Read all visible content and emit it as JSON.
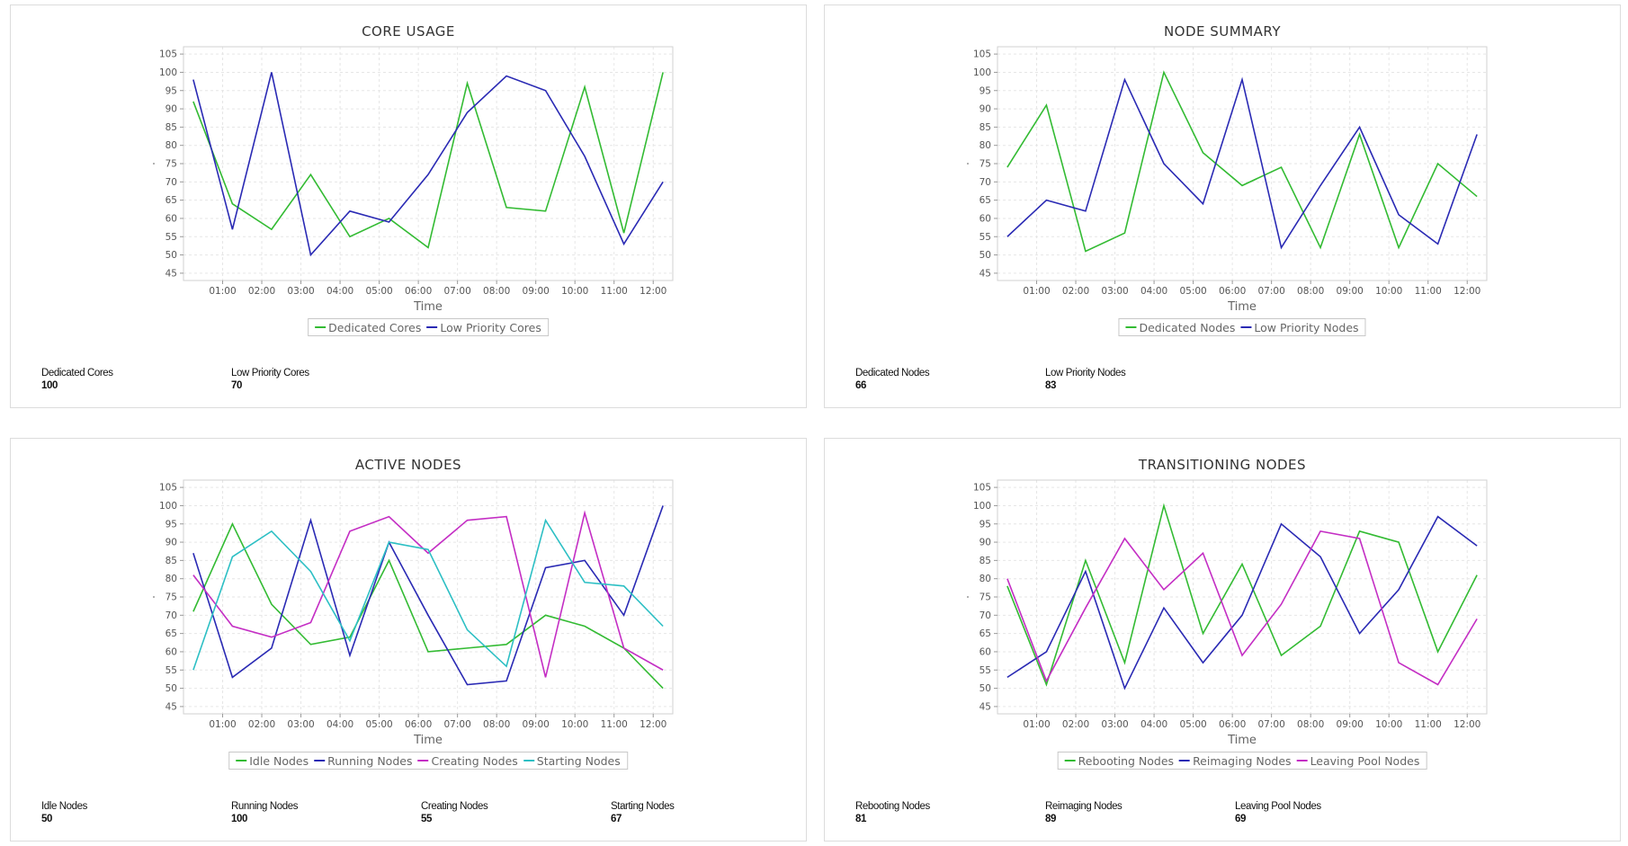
{
  "colors": {
    "green": "#33bb33",
    "blue": "#2a2ab4",
    "magenta": "#c42ec4",
    "cyan": "#2cbfc4"
  },
  "chart_data": [
    {
      "type": "line",
      "title": "CORE USAGE",
      "xlabel": "Time",
      "ylabel": "",
      "categories": [
        "01:00",
        "02:00",
        "03:00",
        "04:00",
        "05:00",
        "06:00",
        "07:00",
        "08:00",
        "09:00",
        "10:00",
        "11:00",
        "12:00"
      ],
      "x": [
        0.25,
        1.25,
        2.25,
        3.25,
        4.25,
        5.25,
        6.25,
        7.25,
        8.25,
        9.25,
        10.25,
        11.25,
        12.25
      ],
      "ylim": [
        43,
        107
      ],
      "yticks": [
        45,
        50,
        55,
        60,
        65,
        70,
        75,
        80,
        85,
        90,
        95,
        100,
        105
      ],
      "grid": true,
      "legend_position": "bottom-center",
      "series": [
        {
          "name": "Dedicated Cores",
          "color": "green",
          "values": [
            92,
            64,
            57,
            72,
            55,
            60,
            52,
            97,
            63,
            62,
            96,
            56,
            100
          ]
        },
        {
          "name": "Low Priority Cores",
          "color": "blue",
          "values": [
            98,
            57,
            100,
            50,
            62,
            59,
            72,
            89,
            99,
            95,
            77,
            53,
            70
          ]
        }
      ],
      "stats": [
        {
          "label": "Dedicated Cores",
          "value": "100"
        },
        {
          "label": "Low Priority Cores",
          "value": "70"
        }
      ]
    },
    {
      "type": "line",
      "title": "NODE SUMMARY",
      "xlabel": "Time",
      "ylabel": "",
      "categories": [
        "01:00",
        "02:00",
        "03:00",
        "04:00",
        "05:00",
        "06:00",
        "07:00",
        "08:00",
        "09:00",
        "10:00",
        "11:00",
        "12:00"
      ],
      "x": [
        0.25,
        1.25,
        2.25,
        3.25,
        4.25,
        5.25,
        6.25,
        7.25,
        8.25,
        9.25,
        10.25,
        11.25,
        12.25
      ],
      "ylim": [
        43,
        107
      ],
      "yticks": [
        45,
        50,
        55,
        60,
        65,
        70,
        75,
        80,
        85,
        90,
        95,
        100,
        105
      ],
      "grid": true,
      "legend_position": "bottom-center",
      "series": [
        {
          "name": "Dedicated Nodes",
          "color": "green",
          "values": [
            74,
            91,
            51,
            56,
            100,
            78,
            69,
            74,
            52,
            83,
            52,
            75,
            66
          ]
        },
        {
          "name": "Low Priority Nodes",
          "color": "blue",
          "values": [
            55,
            65,
            62,
            98,
            75,
            64,
            98,
            52,
            69,
            85,
            61,
            53,
            83
          ]
        }
      ],
      "stats": [
        {
          "label": "Dedicated Nodes",
          "value": "66"
        },
        {
          "label": "Low Priority Nodes",
          "value": "83"
        }
      ]
    },
    {
      "type": "line",
      "title": "ACTIVE NODES",
      "xlabel": "Time",
      "ylabel": "",
      "categories": [
        "01:00",
        "02:00",
        "03:00",
        "04:00",
        "05:00",
        "06:00",
        "07:00",
        "08:00",
        "09:00",
        "10:00",
        "11:00",
        "12:00"
      ],
      "x": [
        0.25,
        1.25,
        2.25,
        3.25,
        4.25,
        5.25,
        6.25,
        7.25,
        8.25,
        9.25,
        10.25,
        11.25,
        12.25
      ],
      "ylim": [
        43,
        107
      ],
      "yticks": [
        45,
        50,
        55,
        60,
        65,
        70,
        75,
        80,
        85,
        90,
        95,
        100,
        105
      ],
      "grid": true,
      "legend_position": "bottom-center",
      "series": [
        {
          "name": "Idle Nodes",
          "color": "green",
          "values": [
            71,
            95,
            73,
            62,
            64,
            85,
            60,
            61,
            62,
            70,
            67,
            61,
            50
          ]
        },
        {
          "name": "Running Nodes",
          "color": "blue",
          "values": [
            87,
            53,
            61,
            96,
            59,
            90,
            70,
            51,
            52,
            83,
            85,
            70,
            100
          ]
        },
        {
          "name": "Creating Nodes",
          "color": "magenta",
          "values": [
            81,
            67,
            64,
            68,
            93,
            97,
            87,
            96,
            97,
            53,
            98,
            61,
            55
          ]
        },
        {
          "name": "Starting Nodes",
          "color": "cyan",
          "values": [
            55,
            86,
            93,
            82,
            63,
            90,
            88,
            66,
            56,
            96,
            79,
            78,
            67
          ]
        }
      ],
      "stats": [
        {
          "label": "Idle Nodes",
          "value": "50"
        },
        {
          "label": "Running Nodes",
          "value": "100"
        },
        {
          "label": "Creating Nodes",
          "value": "55"
        },
        {
          "label": "Starting Nodes",
          "value": "67"
        }
      ]
    },
    {
      "type": "line",
      "title": "TRANSITIONING NODES",
      "xlabel": "Time",
      "ylabel": "",
      "categories": [
        "01:00",
        "02:00",
        "03:00",
        "04:00",
        "05:00",
        "06:00",
        "07:00",
        "08:00",
        "09:00",
        "10:00",
        "11:00",
        "12:00"
      ],
      "x": [
        0.25,
        1.25,
        2.25,
        3.25,
        4.25,
        5.25,
        6.25,
        7.25,
        8.25,
        9.25,
        10.25,
        11.25,
        12.25
      ],
      "ylim": [
        43,
        107
      ],
      "yticks": [
        45,
        50,
        55,
        60,
        65,
        70,
        75,
        80,
        85,
        90,
        95,
        100,
        105
      ],
      "grid": true,
      "legend_position": "bottom-center",
      "series": [
        {
          "name": "Rebooting Nodes",
          "color": "green",
          "values": [
            78,
            51,
            85,
            57,
            100,
            65,
            84,
            59,
            67,
            93,
            90,
            60,
            81
          ]
        },
        {
          "name": "Reimaging Nodes",
          "color": "blue",
          "values": [
            53,
            60,
            82,
            50,
            72,
            57,
            70,
            95,
            86,
            65,
            77,
            97,
            89
          ]
        },
        {
          "name": "Leaving Pool Nodes",
          "color": "magenta",
          "values": [
            80,
            52,
            72,
            91,
            77,
            87,
            59,
            73,
            93,
            91,
            57,
            51,
            69
          ]
        }
      ],
      "stats": [
        {
          "label": "Rebooting Nodes",
          "value": "81"
        },
        {
          "label": "Reimaging Nodes",
          "value": "89"
        },
        {
          "label": "Leaving Pool Nodes",
          "value": "69"
        }
      ]
    }
  ]
}
